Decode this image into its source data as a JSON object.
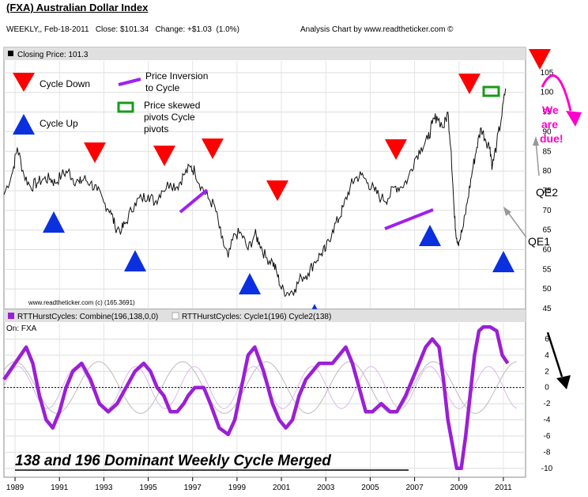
{
  "header": {
    "title": "(FXA) Australian Dollar Index",
    "info_left": "WEEKLY,, Feb-18-2011   Close: $101.34   Change: +$1.03  (1.0%)",
    "info_right": "Analysis Chart by www.readtheticker.com ©"
  },
  "price_panel": {
    "label": "Closing Price: 101.3",
    "watermark": "www.readtheticker.com (c) (165.3691)",
    "legend": {
      "cycle_down": "Cycle Down",
      "cycle_up": "Cycle Up",
      "inversion_l1": "Price Inversion",
      "inversion_l2": "to Cycle",
      "skew_l1": "Price skewed",
      "skew_l2": "pivots Cycle",
      "skew_l3": "pivots"
    },
    "annotations": {
      "due_1": "We",
      "due_2": "are",
      "due_3": "due!",
      "qe2": "QE2",
      "qe1": "QE1"
    }
  },
  "cycle_panel": {
    "legend_combine": "RTTHurstCycles: Combine(196,138,0,0)",
    "legend_cycle": "RTTHurstCycles: Cycle1(196)  Cycle2(138)",
    "on_label": "On: FXA",
    "caption": "138 and 196 Dominant Weekly Cycle Merged"
  },
  "colors": {
    "price_line": "#111111",
    "down_marker": "#ff0000",
    "up_marker": "#0a30e0",
    "inversion": "#a020f0",
    "skew": "#1a9a1a",
    "combine": "#9b1fd6",
    "annotation": "#ff00cc",
    "panel_header": "#e0e0e0"
  },
  "chart_data": [
    {
      "type": "line",
      "series": [
        {
          "name": "Closing Price",
          "x": [
            1988.5,
            1988.9,
            1989.1,
            1989.4,
            1989.7,
            1990.0,
            1990.3,
            1990.6,
            1990.8,
            1991.1,
            1991.4,
            1991.6,
            1991.9,
            1992.1,
            1992.4,
            1992.7,
            1993.0,
            1993.3,
            1993.5,
            1993.8,
            1994.0,
            1994.4,
            1994.7,
            1995.0,
            1995.3,
            1995.6,
            1996.0,
            1996.3,
            1996.6,
            1996.9,
            1997.1,
            1997.4,
            1997.7,
            1998.0,
            1998.3,
            1998.6,
            1998.9,
            1999.2,
            1999.5,
            1999.8,
            2000.0,
            2000.3,
            2000.6,
            2000.8,
            2001.0,
            2001.3,
            2001.6,
            2001.9,
            2002.2,
            2002.5,
            2002.8,
            2003.0,
            2003.3,
            2003.6,
            2003.8,
            2004.1,
            2004.3,
            2004.6,
            2004.9,
            2005.2,
            2005.5,
            2005.8,
            2006.1,
            2006.4,
            2006.7,
            2007.0,
            2007.3,
            2007.6,
            2007.8,
            2008.0,
            2008.3,
            2008.5,
            2008.65,
            2008.8,
            2008.9,
            2009.0,
            2009.2,
            2009.4,
            2009.6,
            2009.8,
            2010.0,
            2010.2,
            2010.4,
            2010.5,
            2010.7,
            2010.9,
            2011.1
          ],
          "values": [
            74,
            80,
            86,
            79,
            76,
            77,
            78,
            78,
            77,
            79,
            80,
            78,
            77,
            78,
            77,
            75,
            72,
            70,
            66,
            65,
            67,
            72,
            73,
            74,
            72,
            75,
            77,
            76,
            79,
            81,
            80,
            76,
            73,
            71,
            63,
            58,
            64,
            64,
            60,
            64,
            62,
            58,
            57,
            54,
            50,
            49,
            50,
            53,
            54,
            57,
            59,
            60,
            65,
            68,
            71,
            76,
            78,
            79,
            77,
            75,
            73,
            73,
            76,
            76,
            78,
            83,
            86,
            88,
            92,
            94,
            91,
            95,
            85,
            68,
            63,
            62,
            66,
            73,
            80,
            86,
            91,
            88,
            86,
            81,
            87,
            93,
            101
          ]
        }
      ],
      "xlim": [
        1988.5,
        2012.0
      ],
      "ylim": [
        45,
        108
      ],
      "x_tick_labels": [
        "1989",
        "1991",
        "1993",
        "1995",
        "1997",
        "1999",
        "2001",
        "2003",
        "2005",
        "2007",
        "2009",
        "2011"
      ],
      "y_tick_labels": [
        "45",
        "50",
        "55",
        "60",
        "65",
        "70",
        "75",
        "80",
        "85",
        "90",
        "95",
        "100",
        "105"
      ],
      "grid": true
    },
    {
      "type": "line",
      "series": [
        {
          "name": "RTTHurstCycles: Combine(196,138,0,0)",
          "x": [
            1988.5,
            1989.0,
            1989.5,
            1989.8,
            1990.1,
            1990.4,
            1990.7,
            1991.0,
            1991.3,
            1991.6,
            1992.0,
            1992.4,
            1992.8,
            1993.2,
            1993.6,
            1994.0,
            1994.4,
            1994.8,
            1995.1,
            1995.4,
            1995.7,
            1996.0,
            1996.3,
            1996.6,
            1996.8,
            1997.1,
            1997.5,
            1997.8,
            1998.2,
            1998.6,
            1998.9,
            1999.2,
            1999.5,
            1999.8,
            2000.2,
            2000.6,
            2000.9,
            2001.2,
            2001.5,
            2001.8,
            2002.1,
            2002.4,
            2002.7,
            2003.0,
            2003.3,
            2003.6,
            2003.9,
            2004.2,
            2004.5,
            2004.8,
            2005.1,
            2005.5,
            2005.9,
            2006.2,
            2006.6,
            2006.9,
            2007.2,
            2007.5,
            2007.8,
            2008.1,
            2008.3,
            2008.5,
            2008.7,
            2008.9,
            2009.1,
            2009.3,
            2009.5,
            2009.7,
            2009.9,
            2010.1,
            2010.4,
            2010.7,
            2010.95,
            2011.2
          ],
          "values": [
            1,
            3,
            5,
            3,
            -1,
            -4,
            -5,
            -3,
            0,
            2,
            3,
            1,
            -2,
            -3,
            -2,
            0,
            2,
            3,
            2,
            0,
            -1,
            -3,
            -3,
            -2,
            -1,
            0,
            0,
            -2,
            -5,
            -5.8,
            -4,
            0,
            4,
            5,
            2,
            -2,
            -4,
            -5,
            -4,
            -1,
            1,
            2,
            3,
            3,
            3,
            4,
            5,
            3,
            0,
            -3,
            -3,
            -2,
            -3,
            -3,
            -1,
            1,
            3,
            5,
            6,
            5,
            1,
            -4,
            -7,
            -10,
            -10,
            -6,
            -1,
            4,
            7,
            7.5,
            7.5,
            7,
            4,
            3
          ]
        }
      ],
      "xlim": [
        1988.5,
        2012.0
      ],
      "ylim": [
        -11,
        8
      ],
      "x_tick_labels": [
        "1989",
        "1991",
        "1993",
        "1995",
        "1997",
        "1999",
        "2001",
        "2003",
        "2005",
        "2007",
        "2009",
        "2011"
      ],
      "y_tick_labels": [
        "-10",
        "-8",
        "-6",
        "-4",
        "-2",
        "0",
        "2",
        "4",
        "6"
      ],
      "grid": true
    }
  ]
}
